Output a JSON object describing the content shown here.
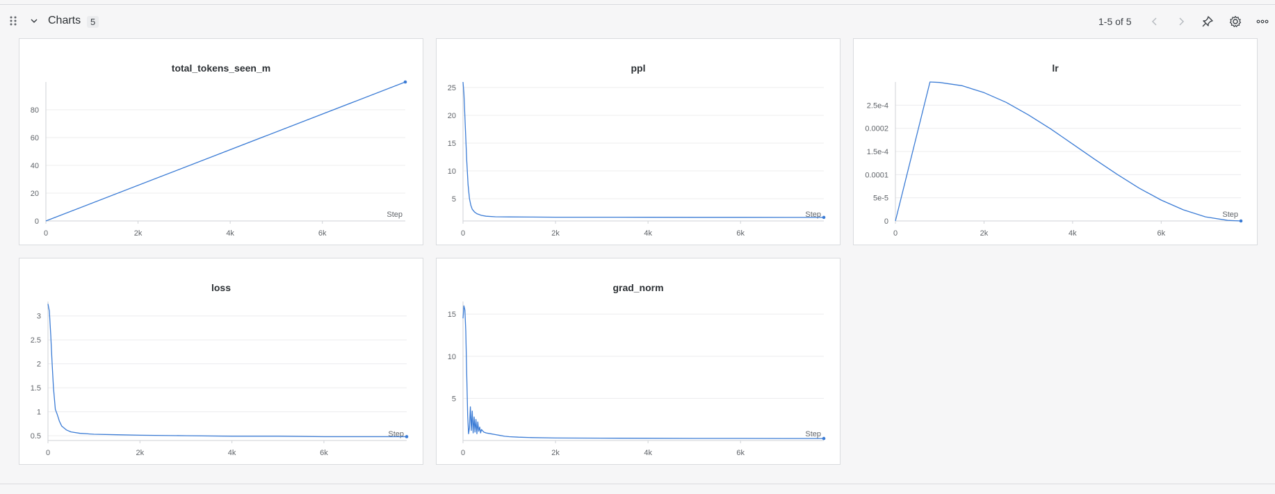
{
  "section": {
    "title": "Charts",
    "count": "5",
    "pager": "1-5 of 5"
  },
  "icons": {
    "drag": "drag-handle-icon",
    "collapse": "chevron-down-icon",
    "prev": "chevron-left-icon",
    "next": "chevron-right-icon",
    "pin": "pin-icon",
    "settings": "gear-icon",
    "more": "more-horizontal-icon"
  },
  "colors": {
    "line": "#3a7bd5",
    "grid": "#ececee",
    "axis": "#cfd2d6"
  },
  "chart_data": [
    {
      "type": "line",
      "title": "total_tokens_seen_m",
      "xlabel": "Step",
      "xlim": [
        0,
        7800
      ],
      "ylim": [
        0,
        100
      ],
      "xticks": [
        {
          "v": 0,
          "label": "0"
        },
        {
          "v": 2000,
          "label": "2k"
        },
        {
          "v": 4000,
          "label": "4k"
        },
        {
          "v": 6000,
          "label": "6k"
        }
      ],
      "yticks": [
        {
          "v": 0,
          "label": "0"
        },
        {
          "v": 20,
          "label": "20"
        },
        {
          "v": 40,
          "label": "40"
        },
        {
          "v": 60,
          "label": "60"
        },
        {
          "v": 80,
          "label": "80"
        }
      ],
      "series": [
        {
          "x": [
            0,
            7800
          ],
          "y": [
            0,
            100
          ]
        }
      ]
    },
    {
      "type": "line",
      "title": "ppl",
      "xlabel": "Step",
      "xlim": [
        0,
        7800
      ],
      "ylim": [
        1,
        26
      ],
      "xticks": [
        {
          "v": 0,
          "label": "0"
        },
        {
          "v": 2000,
          "label": "2k"
        },
        {
          "v": 4000,
          "label": "4k"
        },
        {
          "v": 6000,
          "label": "6k"
        }
      ],
      "yticks": [
        {
          "v": 5,
          "label": "5"
        },
        {
          "v": 10,
          "label": "10"
        },
        {
          "v": 15,
          "label": "15"
        },
        {
          "v": 20,
          "label": "20"
        },
        {
          "v": 25,
          "label": "25"
        }
      ],
      "series": [
        {
          "x": [
            0,
            20,
            50,
            80,
            110,
            140,
            170,
            200,
            250,
            300,
            400,
            500,
            700,
            1000,
            1500,
            2000,
            3000,
            4000,
            5000,
            6000,
            7000,
            7800
          ],
          "y": [
            26,
            24,
            18,
            12,
            7.5,
            5,
            3.8,
            3.1,
            2.6,
            2.3,
            2.0,
            1.85,
            1.75,
            1.72,
            1.7,
            1.68,
            1.67,
            1.66,
            1.65,
            1.65,
            1.64,
            1.64
          ]
        }
      ]
    },
    {
      "type": "line",
      "title": "lr",
      "xlabel": "Step",
      "xlim": [
        0,
        7800
      ],
      "ylim": [
        0,
        0.0003
      ],
      "xticks": [
        {
          "v": 0,
          "label": "0"
        },
        {
          "v": 2000,
          "label": "2k"
        },
        {
          "v": 4000,
          "label": "4k"
        },
        {
          "v": 6000,
          "label": "6k"
        }
      ],
      "yticks": [
        {
          "v": 0,
          "label": "0"
        },
        {
          "v": 5e-05,
          "label": "5e-5"
        },
        {
          "v": 0.0001,
          "label": "0.0001"
        },
        {
          "v": 0.00015,
          "label": "1.5e-4"
        },
        {
          "v": 0.0002,
          "label": "0.0002"
        },
        {
          "v": 0.00025,
          "label": "2.5e-4"
        }
      ],
      "series": [
        {
          "x": [
            0,
            780,
            1000,
            1500,
            2000,
            2500,
            3000,
            3500,
            4000,
            4500,
            5000,
            5500,
            6000,
            6500,
            7000,
            7500,
            7800
          ],
          "y": [
            0,
            0.0003,
            0.000299,
            0.000292,
            0.000277,
            0.000256,
            0.000229,
            0.000199,
            0.000166,
            0.000133,
            0.000101,
            7.1e-05,
            4.5e-05,
            2.4e-05,
            8.8e-06,
            1.2e-06,
            0
          ]
        }
      ]
    },
    {
      "type": "line",
      "title": "loss",
      "xlabel": "Step",
      "xlim": [
        0,
        7800
      ],
      "ylim": [
        0.4,
        3.3
      ],
      "xticks": [
        {
          "v": 0,
          "label": "0"
        },
        {
          "v": 2000,
          "label": "2k"
        },
        {
          "v": 4000,
          "label": "4k"
        },
        {
          "v": 6000,
          "label": "6k"
        }
      ],
      "yticks": [
        {
          "v": 0.5,
          "label": "0.5"
        },
        {
          "v": 1,
          "label": "1"
        },
        {
          "v": 1.5,
          "label": "1.5"
        },
        {
          "v": 2,
          "label": "2"
        },
        {
          "v": 2.5,
          "label": "2.5"
        },
        {
          "v": 3,
          "label": "3"
        }
      ],
      "series": [
        {
          "x": [
            0,
            30,
            60,
            90,
            120,
            160,
            200,
            250,
            300,
            400,
            500,
            700,
            1000,
            1500,
            2000,
            3000,
            4000,
            5000,
            6000,
            7000,
            7800
          ],
          "y": [
            3.25,
            3.1,
            2.6,
            2.0,
            1.5,
            1.05,
            0.95,
            0.8,
            0.7,
            0.62,
            0.58,
            0.55,
            0.53,
            0.52,
            0.51,
            0.5,
            0.49,
            0.49,
            0.48,
            0.48,
            0.48
          ]
        }
      ]
    },
    {
      "type": "line",
      "title": "grad_norm",
      "xlabel": "Step",
      "xlim": [
        0,
        7800
      ],
      "ylim": [
        0,
        16.5
      ],
      "xticks": [
        {
          "v": 0,
          "label": "0"
        },
        {
          "v": 2000,
          "label": "2k"
        },
        {
          "v": 4000,
          "label": "4k"
        },
        {
          "v": 6000,
          "label": "6k"
        }
      ],
      "yticks": [
        {
          "v": 5,
          "label": "5"
        },
        {
          "v": 10,
          "label": "10"
        },
        {
          "v": 15,
          "label": "15"
        }
      ],
      "series": [
        {
          "x": [
            0,
            20,
            40,
            60,
            80,
            100,
            120,
            140,
            160,
            180,
            200,
            220,
            240,
            260,
            280,
            300,
            320,
            340,
            360,
            380,
            400,
            450,
            500,
            600,
            700,
            800,
            900,
            1000,
            1200,
            1500,
            2000,
            3000,
            4000,
            5000,
            6000,
            7000,
            7800
          ],
          "y": [
            14.5,
            16,
            15.5,
            13,
            8,
            3,
            0.8,
            1.5,
            4,
            1.2,
            3.5,
            0.9,
            2.8,
            1.0,
            2.5,
            0.8,
            2.2,
            1.1,
            1.6,
            0.9,
            1.3,
            1.0,
            0.9,
            0.8,
            0.7,
            0.6,
            0.5,
            0.45,
            0.4,
            0.35,
            0.3,
            0.28,
            0.26,
            0.25,
            0.25,
            0.24,
            0.24
          ]
        }
      ]
    }
  ]
}
